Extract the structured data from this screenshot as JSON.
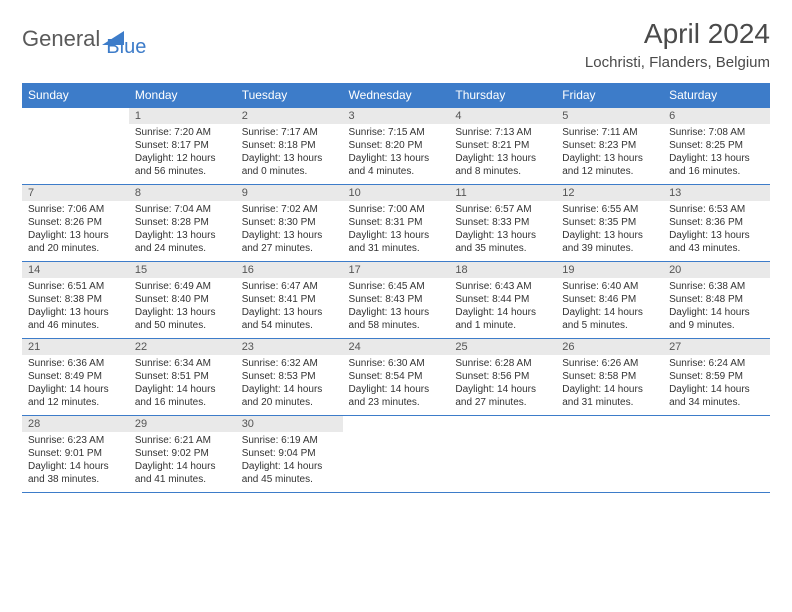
{
  "logo": {
    "part1": "General",
    "part2": "Blue"
  },
  "title": "April 2024",
  "location": "Lochristi, Flanders, Belgium",
  "weekdayHeaders": [
    "Sunday",
    "Monday",
    "Tuesday",
    "Wednesday",
    "Thursday",
    "Friday",
    "Saturday"
  ],
  "weeks": [
    [
      {
        "day": "",
        "lines": [
          "",
          "",
          "",
          ""
        ]
      },
      {
        "day": "1",
        "lines": [
          "Sunrise: 7:20 AM",
          "Sunset: 8:17 PM",
          "Daylight: 12 hours",
          "and 56 minutes."
        ]
      },
      {
        "day": "2",
        "lines": [
          "Sunrise: 7:17 AM",
          "Sunset: 8:18 PM",
          "Daylight: 13 hours",
          "and 0 minutes."
        ]
      },
      {
        "day": "3",
        "lines": [
          "Sunrise: 7:15 AM",
          "Sunset: 8:20 PM",
          "Daylight: 13 hours",
          "and 4 minutes."
        ]
      },
      {
        "day": "4",
        "lines": [
          "Sunrise: 7:13 AM",
          "Sunset: 8:21 PM",
          "Daylight: 13 hours",
          "and 8 minutes."
        ]
      },
      {
        "day": "5",
        "lines": [
          "Sunrise: 7:11 AM",
          "Sunset: 8:23 PM",
          "Daylight: 13 hours",
          "and 12 minutes."
        ]
      },
      {
        "day": "6",
        "lines": [
          "Sunrise: 7:08 AM",
          "Sunset: 8:25 PM",
          "Daylight: 13 hours",
          "and 16 minutes."
        ]
      }
    ],
    [
      {
        "day": "7",
        "lines": [
          "Sunrise: 7:06 AM",
          "Sunset: 8:26 PM",
          "Daylight: 13 hours",
          "and 20 minutes."
        ]
      },
      {
        "day": "8",
        "lines": [
          "Sunrise: 7:04 AM",
          "Sunset: 8:28 PM",
          "Daylight: 13 hours",
          "and 24 minutes."
        ]
      },
      {
        "day": "9",
        "lines": [
          "Sunrise: 7:02 AM",
          "Sunset: 8:30 PM",
          "Daylight: 13 hours",
          "and 27 minutes."
        ]
      },
      {
        "day": "10",
        "lines": [
          "Sunrise: 7:00 AM",
          "Sunset: 8:31 PM",
          "Daylight: 13 hours",
          "and 31 minutes."
        ]
      },
      {
        "day": "11",
        "lines": [
          "Sunrise: 6:57 AM",
          "Sunset: 8:33 PM",
          "Daylight: 13 hours",
          "and 35 minutes."
        ]
      },
      {
        "day": "12",
        "lines": [
          "Sunrise: 6:55 AM",
          "Sunset: 8:35 PM",
          "Daylight: 13 hours",
          "and 39 minutes."
        ]
      },
      {
        "day": "13",
        "lines": [
          "Sunrise: 6:53 AM",
          "Sunset: 8:36 PM",
          "Daylight: 13 hours",
          "and 43 minutes."
        ]
      }
    ],
    [
      {
        "day": "14",
        "lines": [
          "Sunrise: 6:51 AM",
          "Sunset: 8:38 PM",
          "Daylight: 13 hours",
          "and 46 minutes."
        ]
      },
      {
        "day": "15",
        "lines": [
          "Sunrise: 6:49 AM",
          "Sunset: 8:40 PM",
          "Daylight: 13 hours",
          "and 50 minutes."
        ]
      },
      {
        "day": "16",
        "lines": [
          "Sunrise: 6:47 AM",
          "Sunset: 8:41 PM",
          "Daylight: 13 hours",
          "and 54 minutes."
        ]
      },
      {
        "day": "17",
        "lines": [
          "Sunrise: 6:45 AM",
          "Sunset: 8:43 PM",
          "Daylight: 13 hours",
          "and 58 minutes."
        ]
      },
      {
        "day": "18",
        "lines": [
          "Sunrise: 6:43 AM",
          "Sunset: 8:44 PM",
          "Daylight: 14 hours",
          "and 1 minute."
        ]
      },
      {
        "day": "19",
        "lines": [
          "Sunrise: 6:40 AM",
          "Sunset: 8:46 PM",
          "Daylight: 14 hours",
          "and 5 minutes."
        ]
      },
      {
        "day": "20",
        "lines": [
          "Sunrise: 6:38 AM",
          "Sunset: 8:48 PM",
          "Daylight: 14 hours",
          "and 9 minutes."
        ]
      }
    ],
    [
      {
        "day": "21",
        "lines": [
          "Sunrise: 6:36 AM",
          "Sunset: 8:49 PM",
          "Daylight: 14 hours",
          "and 12 minutes."
        ]
      },
      {
        "day": "22",
        "lines": [
          "Sunrise: 6:34 AM",
          "Sunset: 8:51 PM",
          "Daylight: 14 hours",
          "and 16 minutes."
        ]
      },
      {
        "day": "23",
        "lines": [
          "Sunrise: 6:32 AM",
          "Sunset: 8:53 PM",
          "Daylight: 14 hours",
          "and 20 minutes."
        ]
      },
      {
        "day": "24",
        "lines": [
          "Sunrise: 6:30 AM",
          "Sunset: 8:54 PM",
          "Daylight: 14 hours",
          "and 23 minutes."
        ]
      },
      {
        "day": "25",
        "lines": [
          "Sunrise: 6:28 AM",
          "Sunset: 8:56 PM",
          "Daylight: 14 hours",
          "and 27 minutes."
        ]
      },
      {
        "day": "26",
        "lines": [
          "Sunrise: 6:26 AM",
          "Sunset: 8:58 PM",
          "Daylight: 14 hours",
          "and 31 minutes."
        ]
      },
      {
        "day": "27",
        "lines": [
          "Sunrise: 6:24 AM",
          "Sunset: 8:59 PM",
          "Daylight: 14 hours",
          "and 34 minutes."
        ]
      }
    ],
    [
      {
        "day": "28",
        "lines": [
          "Sunrise: 6:23 AM",
          "Sunset: 9:01 PM",
          "Daylight: 14 hours",
          "and 38 minutes."
        ]
      },
      {
        "day": "29",
        "lines": [
          "Sunrise: 6:21 AM",
          "Sunset: 9:02 PM",
          "Daylight: 14 hours",
          "and 41 minutes."
        ]
      },
      {
        "day": "30",
        "lines": [
          "Sunrise: 6:19 AM",
          "Sunset: 9:04 PM",
          "Daylight: 14 hours",
          "and 45 minutes."
        ]
      },
      {
        "day": "",
        "lines": [
          "",
          "",
          "",
          ""
        ]
      },
      {
        "day": "",
        "lines": [
          "",
          "",
          "",
          ""
        ]
      },
      {
        "day": "",
        "lines": [
          "",
          "",
          "",
          ""
        ]
      },
      {
        "day": "",
        "lines": [
          "",
          "",
          "",
          ""
        ]
      }
    ]
  ]
}
